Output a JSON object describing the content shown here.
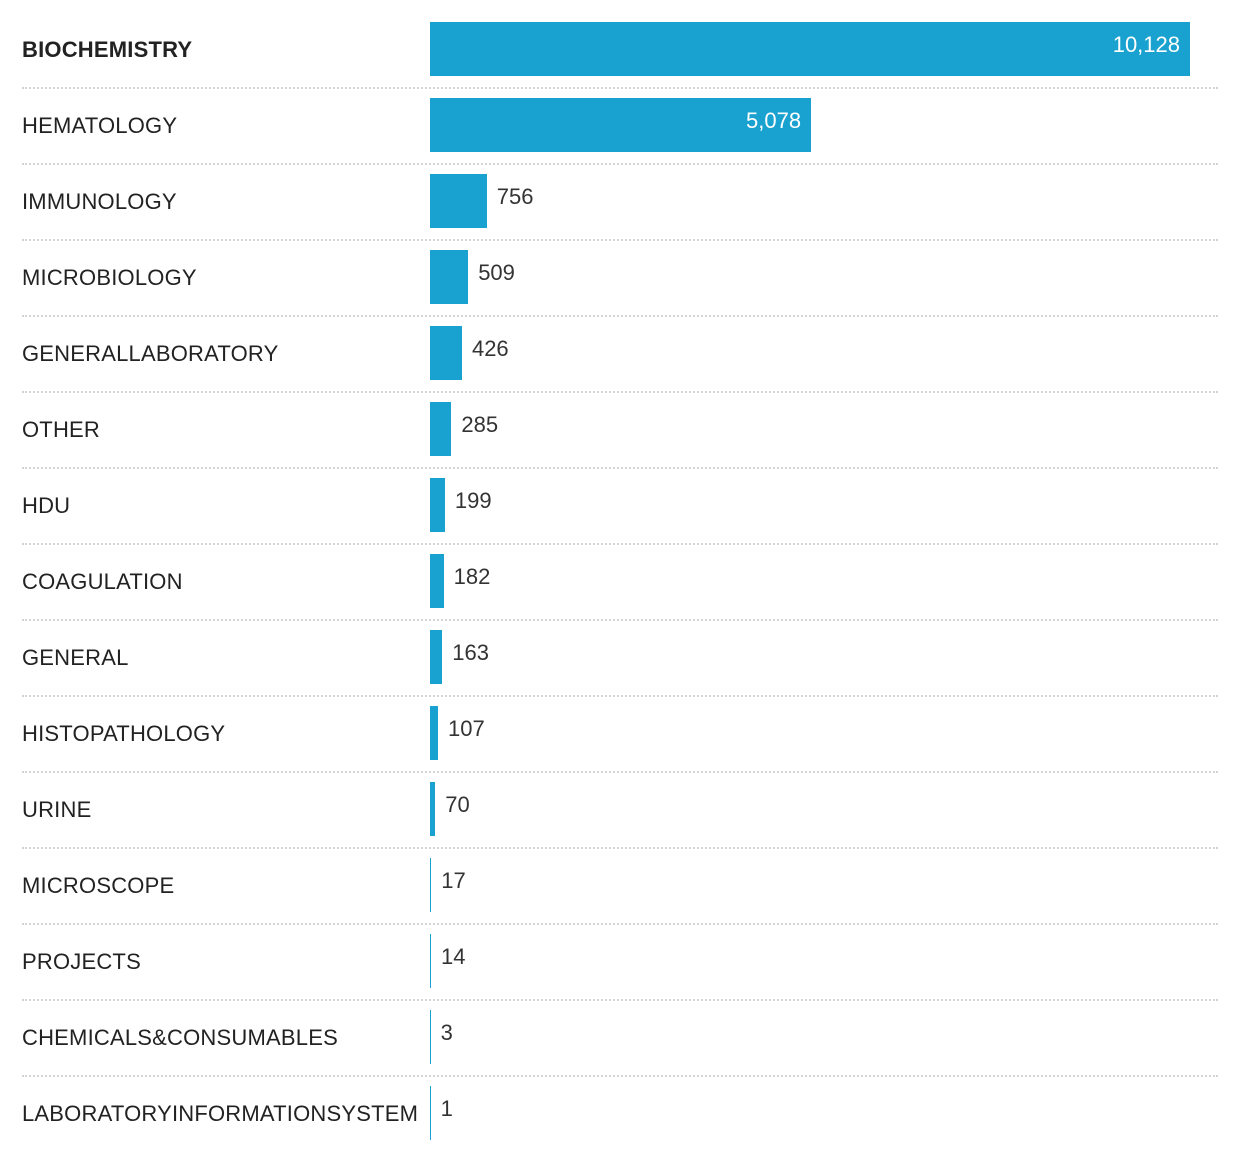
{
  "chart_data": {
    "type": "bar",
    "orientation": "horizontal",
    "categories": [
      "BIOCHEMISTRY",
      "HEMATOLOGY",
      "IMMUNOLOGY",
      "MICROBIOLOGY",
      "GENERALLABORATORY",
      "OTHER",
      "HDU",
      "COAGULATION",
      "GENERAL",
      "HISTOPATHOLOGY",
      "URINE",
      "MICROSCOPE",
      "PROJECTS",
      "CHEMICALS&CONSUMABLES",
      "LABORATORYINFORMATIONSYSTEM"
    ],
    "values": [
      10128,
      5078,
      756,
      509,
      426,
      285,
      199,
      182,
      163,
      107,
      70,
      17,
      14,
      3,
      1
    ],
    "value_labels": [
      "10,128",
      "5,078",
      "756",
      "509",
      "426",
      "285",
      "199",
      "182",
      "163",
      "107",
      "70",
      "17",
      "14",
      "3",
      "1"
    ],
    "xlim": [
      0,
      10128
    ],
    "grid": false,
    "legend": "none",
    "bar_color": "#19a2cf",
    "label_inside_color": "#ffffff",
    "label_outside_color": "#333333"
  }
}
